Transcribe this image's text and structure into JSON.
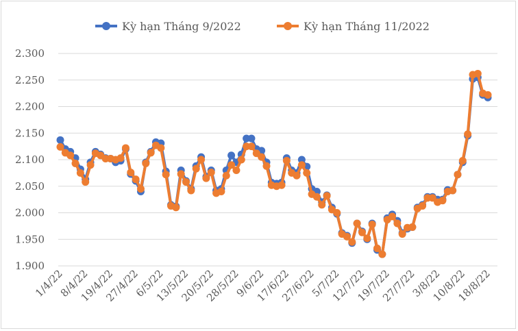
{
  "chart_data": {
    "type": "line",
    "title": "",
    "xlabel": "",
    "ylabel": "",
    "ylim": [
      1.9,
      2.3
    ],
    "y_ticks": [
      "1.900",
      "1.950",
      "2.000",
      "2.050",
      "2.100",
      "2.150",
      "2.200",
      "2.250",
      "2.300"
    ],
    "x_tick_labels": [
      "1/4/22",
      "8/4/22",
      "19/4/22",
      "27/4/22",
      "6/5/22",
      "13/5/22",
      "20/5/22",
      "28/5/22",
      "9/6/22",
      "17/6/22",
      "27/6/22",
      "5/7/22",
      "12/7/22",
      "19/7/22",
      "27/7/22",
      "3/8/22",
      "10/8/22",
      "18/8/22"
    ],
    "grid": "horizontal",
    "legend_position": "top",
    "series": [
      {
        "name": "Kỳ hạn Tháng 9/2022",
        "color": "#4472c4",
        "values": [
          2.137,
          2.12,
          2.115,
          2.103,
          2.082,
          2.063,
          2.095,
          2.115,
          2.11,
          2.103,
          2.102,
          2.095,
          2.098,
          2.12,
          2.073,
          2.06,
          2.04,
          2.095,
          2.115,
          2.133,
          2.131,
          2.078,
          2.015,
          2.012,
          2.08,
          2.06,
          2.045,
          2.088,
          2.105,
          2.068,
          2.08,
          2.042,
          2.045,
          2.08,
          2.108,
          2.095,
          2.11,
          2.14,
          2.14,
          2.12,
          2.117,
          2.095,
          2.057,
          2.055,
          2.057,
          2.103,
          2.08,
          2.075,
          2.1,
          2.087,
          2.045,
          2.04,
          2.02,
          2.033,
          2.01,
          1.998,
          1.962,
          1.957,
          1.943,
          1.98,
          1.965,
          1.95,
          1.98,
          1.93,
          1.922,
          1.99,
          1.997,
          1.985,
          1.962,
          1.97,
          1.973,
          2.01,
          2.015,
          2.03,
          2.03,
          2.025,
          2.025,
          2.043,
          2.042,
          2.072,
          2.095,
          2.145,
          2.252,
          2.255,
          2.222,
          2.217
        ]
      },
      {
        "name": "Kỳ hạn Tháng 11/2022",
        "color": "#ed7d31",
        "values": [
          2.124,
          2.113,
          2.108,
          2.093,
          2.075,
          2.058,
          2.09,
          2.112,
          2.108,
          2.102,
          2.102,
          2.1,
          2.103,
          2.122,
          2.076,
          2.063,
          2.045,
          2.093,
          2.113,
          2.127,
          2.122,
          2.072,
          2.013,
          2.01,
          2.073,
          2.058,
          2.042,
          2.083,
          2.1,
          2.065,
          2.076,
          2.037,
          2.04,
          2.07,
          2.09,
          2.08,
          2.1,
          2.125,
          2.125,
          2.112,
          2.105,
          2.088,
          2.052,
          2.05,
          2.052,
          2.098,
          2.075,
          2.07,
          2.09,
          2.075,
          2.035,
          2.03,
          2.015,
          2.032,
          2.006,
          2.0,
          1.96,
          1.955,
          1.945,
          1.98,
          1.963,
          1.952,
          1.978,
          1.933,
          1.922,
          1.987,
          1.993,
          1.98,
          1.96,
          1.972,
          1.973,
          2.008,
          2.013,
          2.028,
          2.028,
          2.02,
          2.023,
          2.04,
          2.042,
          2.072,
          2.098,
          2.148,
          2.26,
          2.262,
          2.225,
          2.222
        ]
      }
    ]
  }
}
